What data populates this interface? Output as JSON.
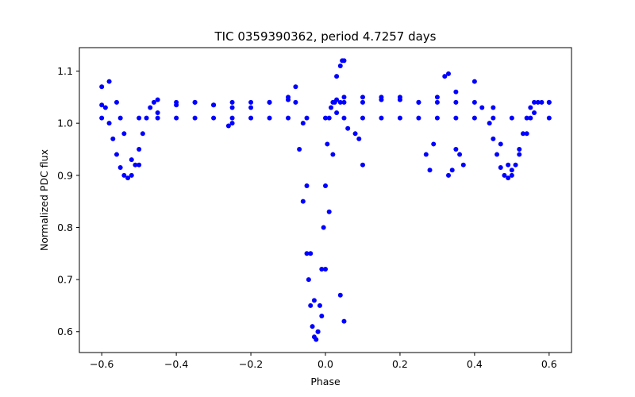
{
  "chart_data": {
    "type": "scatter",
    "title": "TIC 0359390362, period 4.7257 days",
    "xlabel": "Phase",
    "ylabel": "Normalized PDC flux",
    "xlim": [
      -0.66,
      0.66
    ],
    "ylim": [
      0.56,
      1.145
    ],
    "xticks": [
      -0.6,
      -0.4,
      -0.2,
      0.0,
      0.2,
      0.4,
      0.6
    ],
    "xtick_labels": [
      "−0.6",
      "−0.4",
      "−0.2",
      "0.0",
      "0.2",
      "0.4",
      "0.6"
    ],
    "yticks": [
      0.6,
      0.7,
      0.8,
      0.9,
      1.0,
      1.1
    ],
    "ytick_labels": [
      "0.6",
      "0.7",
      "0.8",
      "0.9",
      "1.0",
      "1.1"
    ],
    "grid": false,
    "legend": null,
    "marker_color": "#0000ff",
    "series": [
      {
        "x": [
          -0.6,
          -0.59,
          -0.58,
          -0.57,
          -0.56,
          -0.55,
          -0.54,
          -0.53,
          -0.52,
          -0.51,
          -0.5,
          -0.49,
          -0.48,
          -0.47,
          -0.46,
          -0.45,
          -0.4,
          -0.35,
          -0.3,
          -0.25,
          -0.2,
          -0.15,
          -0.1,
          -0.08,
          -0.07,
          -0.06,
          -0.05,
          -0.045,
          -0.04,
          -0.035,
          -0.03,
          -0.025,
          -0.02,
          -0.015,
          -0.01,
          -0.005,
          0.0,
          0.005,
          0.01,
          0.015,
          0.02,
          0.025,
          0.03,
          0.05,
          0.1,
          0.15,
          0.2,
          0.25,
          0.3,
          0.35,
          0.4,
          0.42,
          0.44,
          0.45,
          0.46,
          0.47,
          0.48,
          0.49,
          0.5,
          0.51,
          0.52,
          0.53,
          0.54,
          0.55,
          0.56,
          0.57,
          0.6
        ],
        "y": [
          1.035,
          1.03,
          1.0,
          0.97,
          0.94,
          0.915,
          0.9,
          0.895,
          0.9,
          0.92,
          0.95,
          0.98,
          1.01,
          1.03,
          1.04,
          1.045,
          1.04,
          1.04,
          1.035,
          1.04,
          1.04,
          1.04,
          1.045,
          1.04,
          0.95,
          0.85,
          0.75,
          0.7,
          0.65,
          0.61,
          0.59,
          0.585,
          0.6,
          0.65,
          0.72,
          0.8,
          0.88,
          0.96,
          1.01,
          1.03,
          1.04,
          1.04,
          1.045,
          1.04,
          1.04,
          1.045,
          1.045,
          1.04,
          1.04,
          1.04,
          1.04,
          1.03,
          1.0,
          0.97,
          0.94,
          0.915,
          0.9,
          0.895,
          0.9,
          0.92,
          0.95,
          0.98,
          1.01,
          1.03,
          1.04,
          1.04,
          1.04
        ]
      },
      {
        "x": [
          -0.6,
          -0.58,
          -0.56,
          -0.54,
          -0.52,
          -0.5,
          -0.45,
          -0.4,
          -0.35,
          -0.3,
          -0.25,
          -0.2,
          -0.15,
          -0.1,
          -0.08,
          -0.06,
          -0.05,
          -0.04,
          -0.03,
          -0.02,
          -0.01,
          0.0,
          0.01,
          0.02,
          0.03,
          0.04,
          0.05,
          0.1,
          0.15,
          0.2,
          0.25,
          0.3,
          0.35,
          0.4,
          0.45,
          0.47,
          0.49,
          0.5,
          0.52,
          0.54,
          0.56,
          0.58,
          0.6
        ],
        "y": [
          1.07,
          1.08,
          1.04,
          0.98,
          0.93,
          0.92,
          1.02,
          1.035,
          1.04,
          1.035,
          1.03,
          1.03,
          1.04,
          1.05,
          1.07,
          1.0,
          0.88,
          0.75,
          0.66,
          0.6,
          0.63,
          0.72,
          0.83,
          0.94,
          1.02,
          1.04,
          1.05,
          1.05,
          1.05,
          1.05,
          1.04,
          1.05,
          1.06,
          1.08,
          1.03,
          0.96,
          0.92,
          0.91,
          0.94,
          0.98,
          1.02,
          1.04,
          1.04
        ]
      },
      {
        "x": [
          -0.6,
          -0.55,
          -0.5,
          -0.45,
          -0.4,
          -0.35,
          -0.3,
          -0.25,
          -0.2,
          -0.15,
          -0.1,
          -0.05,
          0.0,
          0.05,
          0.1,
          0.15,
          0.2,
          0.25,
          0.3,
          0.35,
          0.4,
          0.45,
          0.5,
          0.55,
          0.6
        ],
        "y": [
          1.01,
          1.01,
          1.01,
          1.01,
          1.01,
          1.01,
          1.01,
          1.01,
          1.01,
          1.01,
          1.01,
          1.01,
          1.01,
          1.01,
          1.01,
          1.01,
          1.01,
          1.01,
          1.01,
          1.01,
          1.01,
          1.01,
          1.01,
          1.01,
          1.01
        ]
      },
      {
        "x": [
          0.03,
          0.04,
          0.045,
          0.05,
          0.06,
          0.08,
          0.09,
          0.1,
          0.27,
          0.28,
          0.29,
          0.33,
          0.34,
          0.35,
          0.36,
          0.37,
          -0.26,
          -0.25,
          0.32,
          0.33,
          0.04,
          0.05
        ],
        "y": [
          1.09,
          1.11,
          1.12,
          1.12,
          0.99,
          0.98,
          0.97,
          0.92,
          0.94,
          0.91,
          0.96,
          0.9,
          0.91,
          0.95,
          0.94,
          0.92,
          0.995,
          1.0,
          1.09,
          1.095,
          0.67,
          0.62
        ]
      }
    ]
  }
}
